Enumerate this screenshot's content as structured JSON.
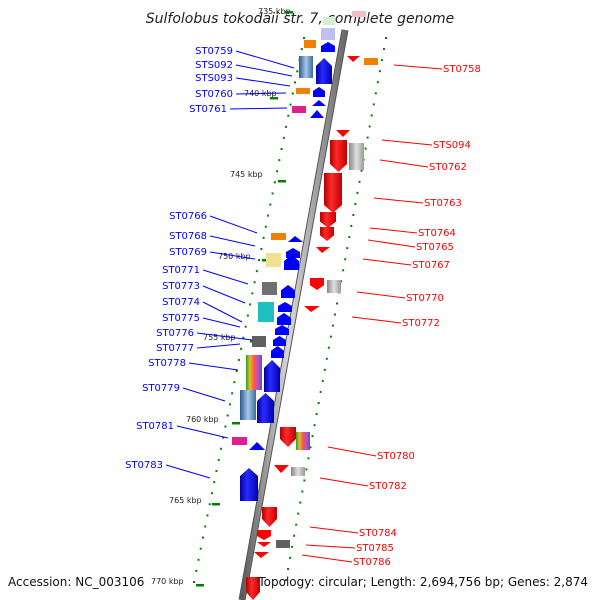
{
  "title": "Sulfolobus tokodaii str. 7, complete genome",
  "footer": {
    "accession": "Accession: NC_003106",
    "topology": "Topology: circular; Length: 2,694,756 bp; Genes: 2,874"
  },
  "colors": {
    "forward": "#0000ff",
    "reverse": "#ff0000",
    "backbone": "#888888",
    "tick": "#008000"
  },
  "kbp_labels": [
    "735 kbp",
    "740 kbp",
    "745 kbp",
    "750 kbp",
    "755 kbp",
    "760 kbp",
    "765 kbp",
    "770 kbp"
  ],
  "forward_labels": [
    "ST0759",
    "STS092",
    "STS093",
    "ST0760",
    "ST0761",
    "ST0766",
    "ST0768",
    "ST0769",
    "ST0771",
    "ST0773",
    "ST0774",
    "ST0775",
    "ST0776",
    "ST0777",
    "ST0778",
    "ST0779",
    "ST0781",
    "ST0783"
  ],
  "reverse_labels": [
    "ST0758",
    "STS094",
    "ST0762",
    "ST0763",
    "ST0764",
    "ST0765",
    "ST0767",
    "ST0770",
    "ST0772",
    "ST0780",
    "ST0782",
    "ST0784",
    "ST0785",
    "ST0786"
  ]
}
